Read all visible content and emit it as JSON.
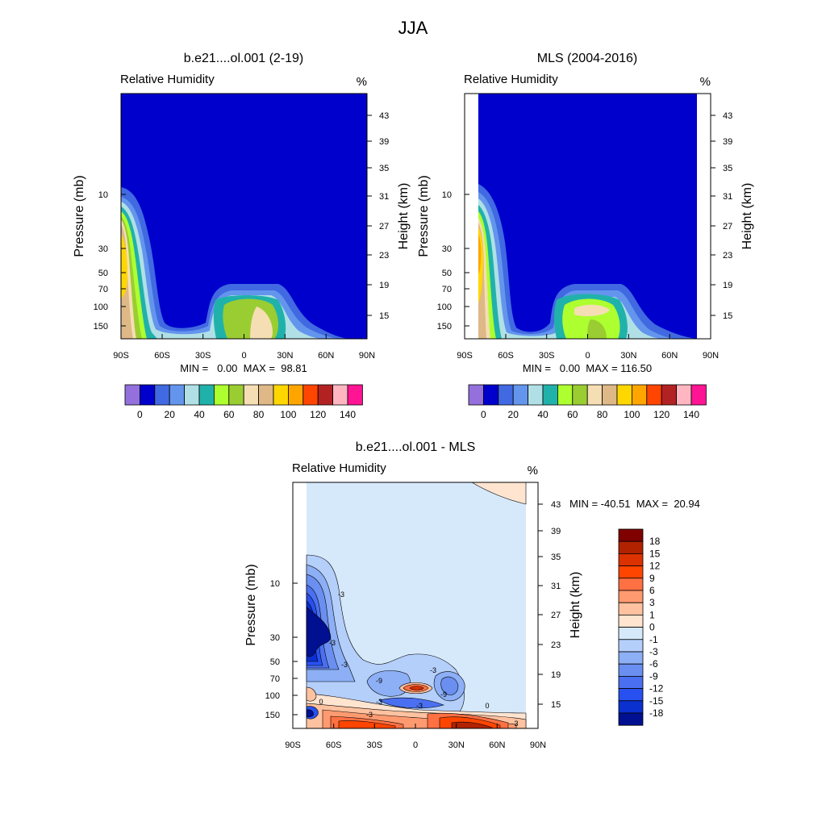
{
  "figure": {
    "title": "JJA"
  },
  "panels": {
    "model": {
      "title": "b.e21....ol.001 (2-19)",
      "left_label": "Relative Humidity",
      "units": "%",
      "ylabel_left": "Pressure (mb)",
      "ylabel_right": "Height (km)",
      "stats": "MIN =   0.00  MAX =  98.81"
    },
    "obs": {
      "title": "MLS (2004-2016)",
      "left_label": "Relative Humidity",
      "units": "%",
      "ylabel_left": "Pressure (mb)",
      "ylabel_right": "Height (km)",
      "stats": "MIN =   0.00  MAX = 116.50"
    },
    "diff": {
      "title": "b.e21....ol.001 - MLS",
      "left_label": "Relative Humidity",
      "units": "%",
      "ylabel_left": "Pressure (mb)",
      "ylabel_right": "Height (km)",
      "stats": "MIN = -40.51  MAX =  20.94"
    }
  },
  "axes": {
    "x_ticks": [
      "90S",
      "60S",
      "30S",
      "0",
      "30N",
      "60N",
      "90N"
    ],
    "pressure_ticks": [
      "10",
      "30",
      "50",
      "70",
      "100",
      "150"
    ],
    "height_ticks": [
      "43",
      "39",
      "35",
      "31",
      "27",
      "23",
      "19",
      "15"
    ]
  },
  "colorbars": {
    "rh": {
      "colors": [
        "#9370db",
        "#0000cd",
        "#4169e1",
        "#6495ed",
        "#b0e0e6",
        "#20b2aa",
        "#adff2f",
        "#9acd32",
        "#f5deb3",
        "#deb887",
        "#ffd700",
        "#ffa500",
        "#ff4500",
        "#b22222",
        "#ffb6c1",
        "#ff1493"
      ],
      "labels": [
        "0",
        "20",
        "40",
        "60",
        "80",
        "100",
        "120",
        "140"
      ]
    },
    "diff": {
      "colors": [
        "#800000",
        "#b22200",
        "#dc3200",
        "#ff4500",
        "#ff7043",
        "#ff9a70",
        "#ffc2a0",
        "#ffe4d0",
        "#d6e9fb",
        "#b4cffa",
        "#8caff5",
        "#6a8ff0",
        "#4a6ff0",
        "#2850f0",
        "#0a30d0",
        "#001090"
      ],
      "labels": [
        "18",
        "15",
        "12",
        "9",
        "6",
        "3",
        "1",
        "0",
        "-1",
        "-3",
        "-6",
        "-9",
        "-12",
        "-15",
        "-18"
      ]
    }
  },
  "contour_labels": [
    "-3",
    "-3",
    "-3",
    "-3",
    "-9",
    "-9",
    "-3",
    "-3",
    "0",
    "0",
    "-3",
    "3"
  ],
  "chart_data": [
    {
      "type": "heatmap",
      "title": "b.e21....ol.001 (2-19)",
      "variable": "Relative Humidity",
      "units": "%",
      "xlabel": "",
      "ylabel": "Pressure (mb)",
      "ylabel_right": "Height (km)",
      "x_ticks": [
        "90S",
        "60S",
        "30S",
        "0",
        "30N",
        "60N",
        "90N"
      ],
      "y_ticks": [
        10,
        30,
        50,
        70,
        100,
        150
      ],
      "y_scale": "log",
      "min": 0.0,
      "max": 98.81,
      "contour_levels": [
        0,
        10,
        20,
        30,
        40,
        50,
        60,
        70,
        80,
        90,
        100,
        110,
        120,
        130,
        140
      ]
    },
    {
      "type": "heatmap",
      "title": "MLS (2004-2016)",
      "variable": "Relative Humidity",
      "units": "%",
      "xlabel": "",
      "ylabel": "Pressure (mb)",
      "ylabel_right": "Height (km)",
      "x_ticks": [
        "90S",
        "60S",
        "30S",
        "0",
        "30N",
        "60N",
        "90N"
      ],
      "y_ticks": [
        10,
        30,
        50,
        70,
        100,
        150
      ],
      "y_scale": "log",
      "min": 0.0,
      "max": 116.5,
      "contour_levels": [
        0,
        10,
        20,
        30,
        40,
        50,
        60,
        70,
        80,
        90,
        100,
        110,
        120,
        130,
        140
      ]
    },
    {
      "type": "heatmap",
      "title": "b.e21....ol.001 - MLS",
      "variable": "Relative Humidity",
      "units": "%",
      "xlabel": "",
      "ylabel": "Pressure (mb)",
      "ylabel_right": "Height (km)",
      "x_ticks": [
        "90S",
        "60S",
        "30S",
        "0",
        "30N",
        "60N",
        "90N"
      ],
      "y_ticks": [
        10,
        30,
        50,
        70,
        100,
        150
      ],
      "y_scale": "log",
      "min": -40.51,
      "max": 20.94,
      "contour_levels": [
        -18,
        -15,
        -12,
        -9,
        -6,
        -3,
        -1,
        0,
        1,
        3,
        6,
        9,
        12,
        15,
        18
      ]
    }
  ]
}
